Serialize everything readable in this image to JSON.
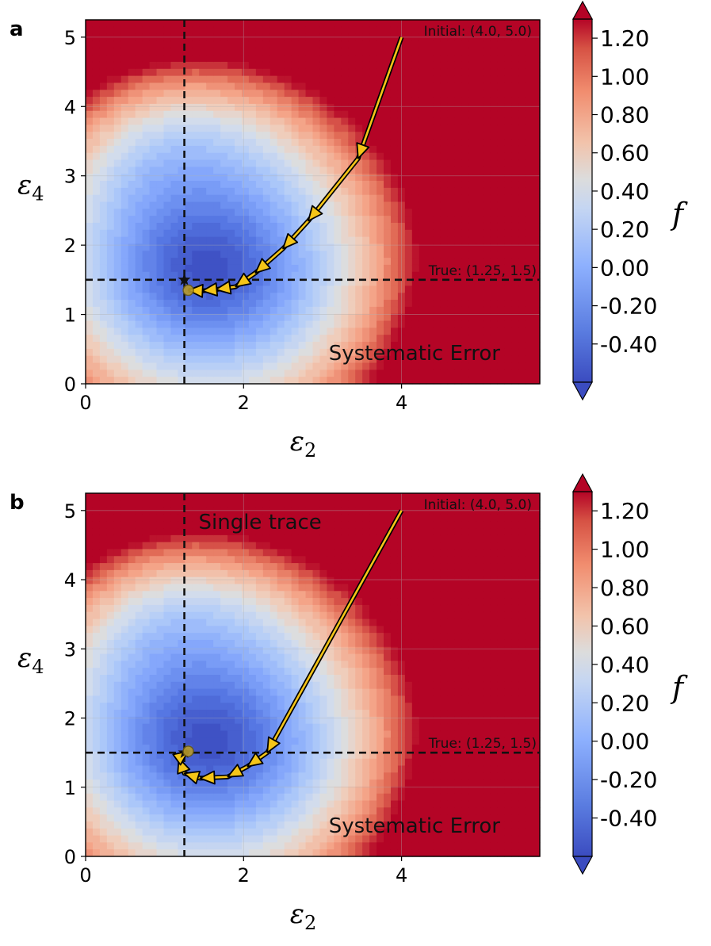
{
  "chart_data": [
    {
      "panel": "a",
      "type": "contour",
      "title": "",
      "xlabel": "ε",
      "xlabel_sub": "2",
      "ylabel": "ε",
      "ylabel_sub": "4",
      "xlim": [
        0,
        5.75
      ],
      "ylim": [
        0,
        5.25
      ],
      "xticks": [
        "0",
        "2",
        "4"
      ],
      "yticks": [
        "0",
        "1",
        "2",
        "3",
        "4",
        "5"
      ],
      "colorbar": {
        "label": "f",
        "range": [
          -0.6,
          1.3
        ],
        "ticks": [
          "1.20",
          "1.00",
          "0.80",
          "0.60",
          "0.40",
          "0.20",
          "0.00",
          "-0.20",
          "-0.40"
        ]
      },
      "true_point": {
        "label": "True: (1.25, 1.5)",
        "x": 1.25,
        "y": 1.5
      },
      "initial_point": {
        "label": "Initial: (4.0, 5.0)",
        "x": 4.0,
        "y": 5.0
      },
      "end_point": {
        "x": 1.3,
        "y": 1.35
      },
      "annotation": "Systematic Error",
      "trajectory": [
        {
          "x": 4.0,
          "y": 5.0
        },
        {
          "x": 3.45,
          "y": 3.25
        },
        {
          "x": 2.82,
          "y": 2.35
        },
        {
          "x": 2.5,
          "y": 1.95
        },
        {
          "x": 2.15,
          "y": 1.6
        },
        {
          "x": 1.9,
          "y": 1.4
        },
        {
          "x": 1.65,
          "y": 1.36
        },
        {
          "x": 1.48,
          "y": 1.34
        },
        {
          "x": 1.3,
          "y": 1.35
        }
      ]
    },
    {
      "panel": "b",
      "type": "contour",
      "title": "",
      "xlabel": "ε",
      "xlabel_sub": "2",
      "ylabel": "ε",
      "ylabel_sub": "4",
      "xlim": [
        0,
        5.75
      ],
      "ylim": [
        0,
        5.25
      ],
      "xticks": [
        "0",
        "2",
        "4"
      ],
      "yticks": [
        "0",
        "1",
        "2",
        "3",
        "4",
        "5"
      ],
      "colorbar": {
        "label": "f",
        "range": [
          -0.6,
          1.3
        ],
        "ticks": [
          "1.20",
          "1.00",
          "0.80",
          "0.60",
          "0.40",
          "0.20",
          "0.00",
          "-0.20",
          "-0.40"
        ]
      },
      "true_point": {
        "label": "True: (1.25, 1.5)",
        "x": 1.25,
        "y": 1.5
      },
      "initial_point": {
        "label": "Initial: (4.0, 5.0)",
        "x": 4.0,
        "y": 5.0
      },
      "end_point": {
        "x": 1.3,
        "y": 1.52
      },
      "annotation": "Systematic Error",
      "annotation2": "Single trace",
      "trajectory": [
        {
          "x": 4.0,
          "y": 5.0
        },
        {
          "x": 2.3,
          "y": 1.5
        },
        {
          "x": 2.05,
          "y": 1.3
        },
        {
          "x": 1.8,
          "y": 1.15
        },
        {
          "x": 1.45,
          "y": 1.13
        },
        {
          "x": 1.25,
          "y": 1.2
        },
        {
          "x": 1.18,
          "y": 1.42
        },
        {
          "x": 1.3,
          "y": 1.52
        }
      ]
    }
  ]
}
